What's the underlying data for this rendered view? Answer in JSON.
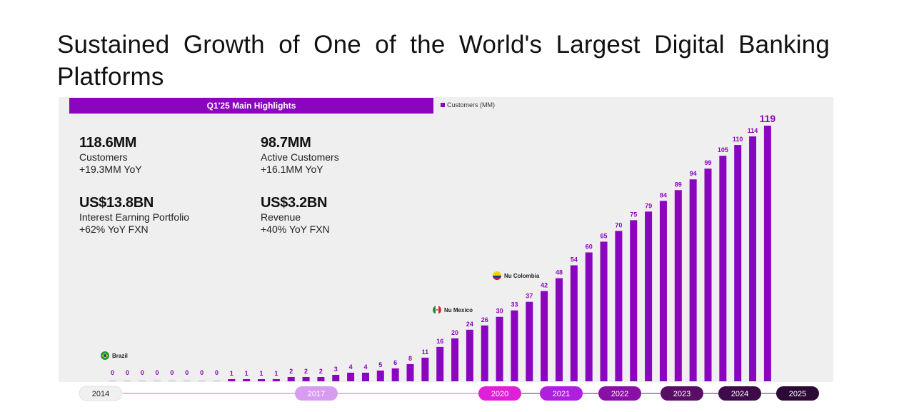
{
  "page": {
    "title": "Sustained Growth of One of the World's Largest Digital Banking Platforms"
  },
  "highlights": {
    "header": "Q1'25 Main Highlights",
    "items": [
      {
        "value": "118.6MM",
        "label": "Customers",
        "delta": "+19.3MM YoY"
      },
      {
        "value": "98.7MM",
        "label": "Active Customers",
        "delta": "+16.1MM YoY"
      },
      {
        "value": "US$13.8BN",
        "label": "Interest Earning Portfolio",
        "delta": "+62% YoY FXN"
      },
      {
        "value": "US$3.2BN",
        "label": "Revenue",
        "delta": "+40% YoY FXN"
      }
    ]
  },
  "colors": {
    "bar": "#8a05be",
    "label": "#8a05be",
    "panel": "#efefef"
  },
  "chart_data": {
    "type": "bar",
    "legend": "Customers (MM)",
    "legend_position": "top-left",
    "values": [
      0,
      0,
      0,
      0,
      0,
      0,
      0,
      0,
      1,
      1,
      1,
      1,
      2,
      2,
      2,
      3,
      4,
      4,
      5,
      6,
      8,
      11,
      16,
      20,
      24,
      26,
      30,
      33,
      37,
      42,
      48,
      54,
      60,
      65,
      70,
      75,
      79,
      84,
      89,
      94,
      99,
      105,
      110,
      114,
      119
    ],
    "ylim": [
      0,
      125
    ],
    "annotations": [
      {
        "label": "Brazil",
        "icon": "brazil-flag-icon",
        "bar_index": 0
      },
      {
        "label": "Nu Mexico",
        "icon": "mexico-flag-icon",
        "bar_index": 22
      },
      {
        "label": "Nu Colombia",
        "icon": "colombia-flag-icon",
        "bar_index": 26
      }
    ],
    "timeline": [
      {
        "label": "2014",
        "bar_index": 0,
        "fill": "#f0f0f0",
        "text": "#222222"
      },
      {
        "label": "2017",
        "bar_index": 13,
        "fill": "#d79cf0",
        "text": "#ffffff"
      },
      {
        "label": "2020",
        "bar_index": 25,
        "fill": "#e020d8",
        "text": "#ffffff"
      },
      {
        "label": "2021",
        "bar_index": 29,
        "fill": "#b01ee0",
        "text": "#ffffff"
      },
      {
        "label": "2022",
        "bar_index": 33,
        "fill": "#8a0fa6",
        "text": "#ffffff"
      },
      {
        "label": "2023",
        "bar_index": 37,
        "fill": "#5a0d66",
        "text": "#ffffff"
      },
      {
        "label": "2024",
        "bar_index": 41,
        "fill": "#3e0a4a",
        "text": "#ffffff"
      },
      {
        "label": "2025",
        "bar_index": 45,
        "fill": "#2c0a35",
        "text": "#ffffff"
      }
    ]
  }
}
